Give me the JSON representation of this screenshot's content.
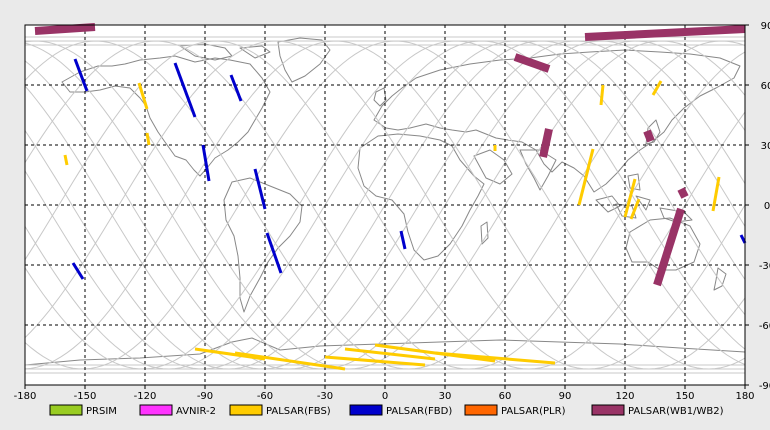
{
  "map": {
    "lon_range": [
      -180,
      180
    ],
    "lat_range": [
      -90,
      90
    ],
    "x_ticks": [
      "-180",
      "-150",
      "-120",
      "-90",
      "-60",
      "-30",
      "0",
      "30",
      "60",
      "90",
      "120",
      "150",
      "180"
    ],
    "y_ticks": [
      "90",
      "60",
      "30",
      "0",
      "-30",
      "-60",
      "-90"
    ],
    "grid": "dashed, every 30 degrees",
    "colors": {
      "background": "#ffffff",
      "frame": "#000000",
      "coastline": "#888888",
      "orbit_tracks": "#c8c8c8"
    }
  },
  "legend": [
    {
      "label": "PRSIM",
      "color": "#99cc22"
    },
    {
      "label": "AVNIR-2",
      "color": "#ff33ff"
    },
    {
      "label": "PALSAR(FBS)",
      "color": "#ffcc00"
    },
    {
      "label": "PALSAR(FBD)",
      "color": "#0000cc"
    },
    {
      "label": "PALSAR(PLR)",
      "color": "#ff6600"
    },
    {
      "label": "PALSAR(WB1/WB2)",
      "color": "#993366"
    }
  ],
  "swaths": {
    "PALSAR(FBD)": [
      {
        "from": [
          -155,
          73
        ],
        "to": [
          -149,
          57
        ]
      },
      {
        "from": [
          -105,
          71
        ],
        "to": [
          -95,
          44
        ]
      },
      {
        "from": [
          -77,
          65
        ],
        "to": [
          -72,
          52
        ]
      },
      {
        "from": [
          -91,
          30
        ],
        "to": [
          -88,
          12
        ]
      },
      {
        "from": [
          -65,
          18
        ],
        "to": [
          -60,
          -2
        ]
      },
      {
        "from": [
          -59,
          -14
        ],
        "to": [
          -52,
          -34
        ]
      },
      {
        "from": [
          8,
          -13
        ],
        "to": [
          10,
          -22
        ]
      },
      {
        "from": [
          -156,
          -29
        ],
        "to": [
          -151,
          -37
        ]
      },
      {
        "from": [
          178,
          -15
        ],
        "to": [
          180,
          -19
        ]
      }
    ],
    "PALSAR(FBS)": [
      {
        "from": [
          -123,
          61
        ],
        "to": [
          -119,
          48
        ]
      },
      {
        "from": [
          -119,
          36
        ],
        "to": [
          -118,
          30
        ]
      },
      {
        "from": [
          -160,
          25
        ],
        "to": [
          -159,
          20
        ]
      },
      {
        "from": [
          55,
          30
        ],
        "to": [
          55,
          27
        ]
      },
      {
        "from": [
          109,
          60
        ],
        "to": [
          108,
          50
        ]
      },
      {
        "from": [
          138,
          62
        ],
        "to": [
          134,
          55
        ]
      },
      {
        "from": [
          104,
          28
        ],
        "to": [
          97,
          0
        ]
      },
      {
        "from": [
          125,
          13
        ],
        "to": [
          120,
          -6
        ]
      },
      {
        "from": [
          127,
          3
        ],
        "to": [
          123,
          -7
        ]
      },
      {
        "from": [
          167,
          14
        ],
        "to": [
          164,
          -3
        ]
      },
      {
        "from": [
          -95,
          -72
        ],
        "to": [
          -60,
          -77
        ]
      },
      {
        "from": [
          -75,
          -74
        ],
        "to": [
          -20,
          -82
        ]
      },
      {
        "from": [
          -30,
          -76
        ],
        "to": [
          20,
          -80
        ]
      },
      {
        "from": [
          -20,
          -72
        ],
        "to": [
          25,
          -77
        ]
      },
      {
        "from": [
          -5,
          -70
        ],
        "to": [
          55,
          -78
        ]
      },
      {
        "from": [
          25,
          -74
        ],
        "to": [
          85,
          -79
        ]
      }
    ],
    "PALSAR(WB1/WB2)": [
      {
        "from": [
          -175,
          87
        ],
        "to": [
          -145,
          89
        ]
      },
      {
        "from": [
          100,
          84
        ],
        "to": [
          180,
          88
        ]
      },
      {
        "from": [
          65,
          74
        ],
        "to": [
          82,
          68
        ]
      },
      {
        "from": [
          82,
          38
        ],
        "to": [
          79,
          24
        ]
      },
      {
        "from": [
          131,
          37
        ],
        "to": [
          133,
          32
        ]
      },
      {
        "from": [
          148,
          8
        ],
        "to": [
          150,
          4
        ]
      },
      {
        "from": [
          148,
          -2
        ],
        "to": [
          136,
          -40
        ]
      }
    ]
  }
}
